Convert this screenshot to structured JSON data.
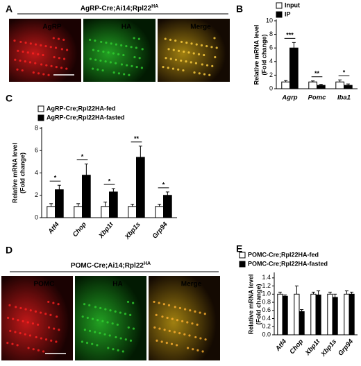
{
  "image_panels": [
    {
      "label": "A",
      "title": [
        "AgRP-Cre;Ai14;Rpl22",
        "HA"
      ],
      "channels": [
        "AgRP",
        "HA",
        "Merge"
      ],
      "channel_colors": [
        "#ff2020",
        "#30d030",
        "#ffd040"
      ]
    },
    {
      "label": "D",
      "title": [
        "POMC-Cre;Ai14;Rpl22",
        "HA"
      ],
      "channels": [
        "POMC",
        "HA",
        "Merge"
      ],
      "channel_colors": [
        "#ff2020",
        "#30d030",
        "#ffb030"
      ]
    }
  ],
  "chart_data": [
    {
      "type": "bar",
      "label": "B",
      "ylabel": [
        "Relative mRNA level",
        "(Fold change)"
      ],
      "categories": [
        "Agrp",
        "Pomc",
        "Iba1"
      ],
      "series": [
        {
          "name": "Input",
          "color": "#ffffff",
          "values": [
            1.0,
            1.0,
            1.0
          ],
          "errors": [
            0.2,
            0.15,
            0.3
          ]
        },
        {
          "name": "IP",
          "color": "#000000",
          "values": [
            6.0,
            0.5,
            0.5
          ],
          "errors": [
            0.8,
            0.15,
            0.2
          ]
        }
      ],
      "significance": [
        "***",
        "**",
        "*"
      ],
      "ylim": [
        0,
        10
      ],
      "yticks": [
        0,
        2,
        4,
        6,
        8,
        10
      ],
      "legend": "top left",
      "rotate_categories": false
    },
    {
      "type": "bar",
      "label": "C",
      "ylabel": [
        "Relative mRNA level",
        "(Fold change)"
      ],
      "categories": [
        "Atf4",
        "Chop",
        "Xbp1t",
        "Xbp1s",
        "Grp94"
      ],
      "series": [
        {
          "name": "AgRP-Cre;Rpl22HA-fed",
          "color": "#ffffff",
          "values": [
            1.0,
            1.0,
            1.0,
            1.0,
            1.0
          ],
          "errors": [
            0.25,
            0.25,
            0.4,
            0.2,
            0.2
          ]
        },
        {
          "name": "AgRP-Cre;Rpl22HA-fasted",
          "color": "#000000",
          "values": [
            2.5,
            3.8,
            2.3,
            5.4,
            2.0
          ],
          "errors": [
            0.4,
            1.0,
            0.3,
            1.0,
            0.3
          ]
        }
      ],
      "significance": [
        "*",
        "*",
        "*",
        "**",
        "*"
      ],
      "ylim": [
        0,
        8
      ],
      "yticks": [
        0,
        2,
        4,
        6,
        8
      ],
      "legend": "top left",
      "rotate_categories": true
    },
    {
      "type": "bar",
      "label": "E",
      "ylabel": [
        "Relative mRNA level",
        "(Fold change)"
      ],
      "categories": [
        "Atf4",
        "Chop",
        "Xbp1t",
        "Xbp1s",
        "Grp94"
      ],
      "series": [
        {
          "name": "POMC-Cre;Rpl22HA-fed",
          "color": "#ffffff",
          "values": [
            1.0,
            1.0,
            1.0,
            1.0,
            1.0
          ],
          "errors": [
            0.05,
            0.2,
            0.05,
            0.05,
            0.08
          ]
        },
        {
          "name": "POMC-Cre;Rpl22HA-fasted",
          "color": "#000000",
          "values": [
            0.95,
            0.57,
            0.98,
            0.92,
            1.0
          ],
          "errors": [
            0.03,
            0.05,
            0.1,
            0.08,
            0.05
          ]
        }
      ],
      "ylim": [
        0,
        1.5
      ],
      "yticks": [
        {
          "value": 0,
          "label": "0.0"
        },
        0.2,
        0.4,
        0.6,
        0.8,
        {
          "value": 1,
          "label": "1.0"
        },
        1.2,
        1.4
      ],
      "legend": "top left",
      "rotate_categories": true
    }
  ]
}
